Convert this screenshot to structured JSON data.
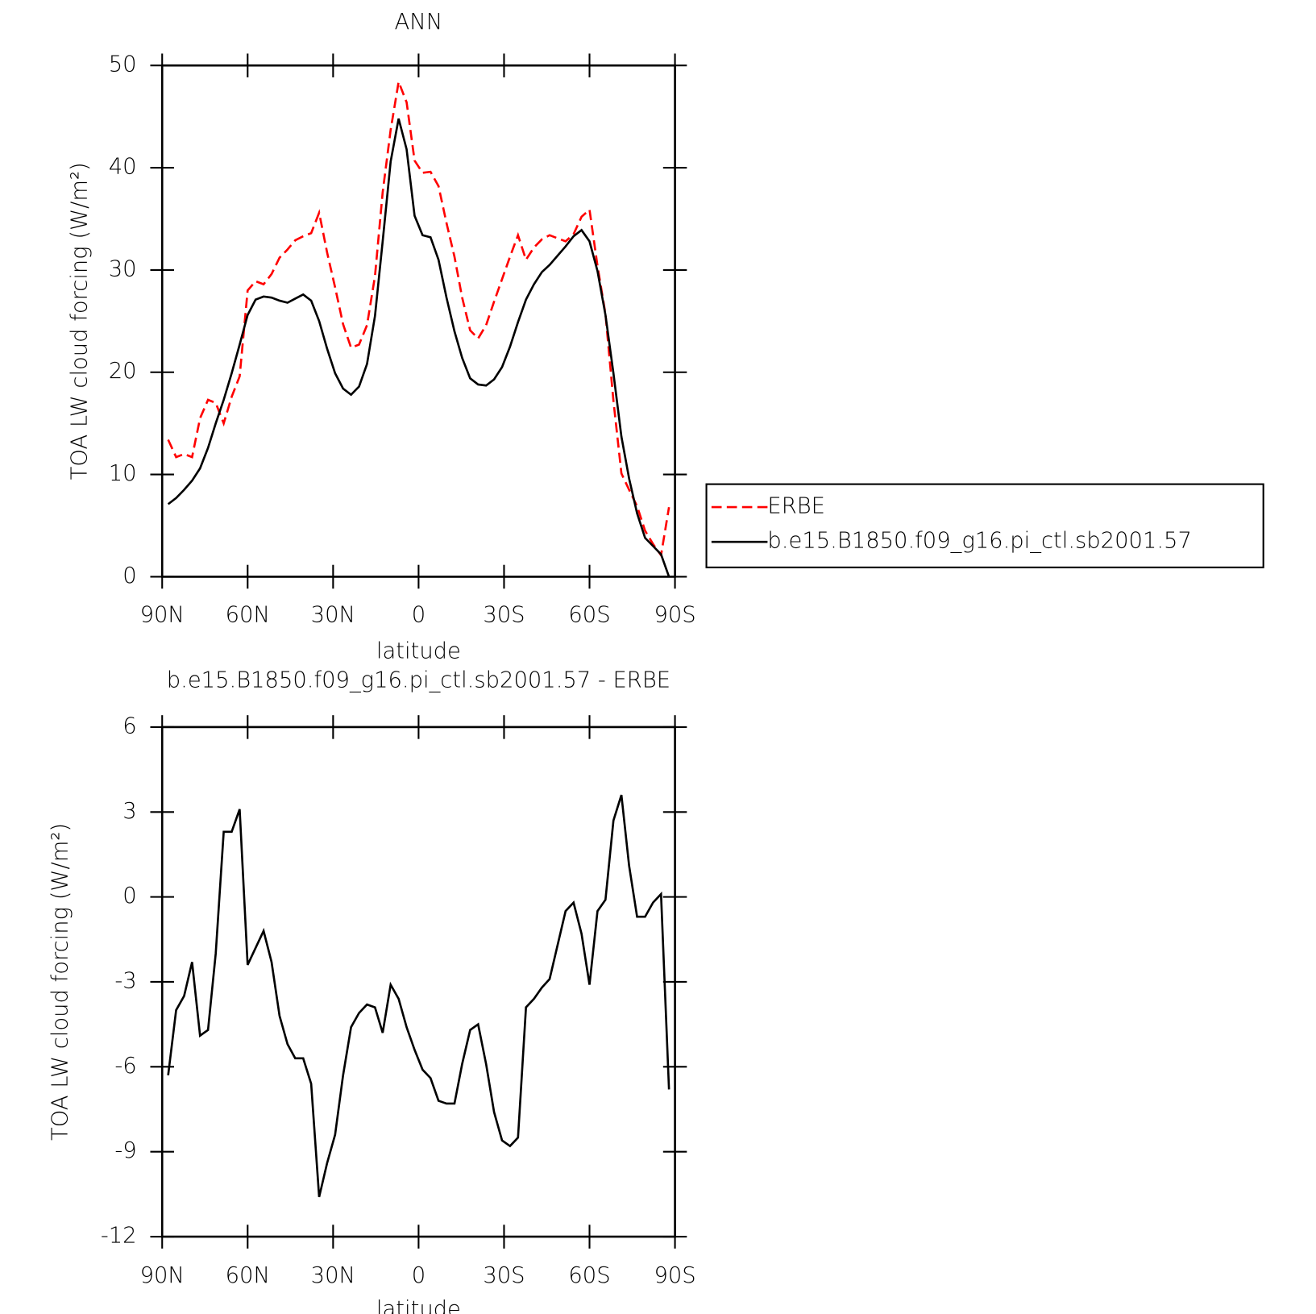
{
  "chart_data": [
    {
      "type": "line",
      "title": "ANN",
      "xlabel": "latitude",
      "ylabel": "TOA LW cloud forcing (W/m²)",
      "x": [
        87.9,
        85.1,
        82.3,
        79.5,
        76.7,
        73.9,
        71.2,
        68.4,
        65.6,
        62.8,
        60.0,
        57.2,
        54.4,
        51.6,
        48.8,
        46.0,
        43.3,
        40.5,
        37.7,
        34.9,
        32.1,
        29.3,
        26.5,
        23.7,
        20.9,
        18.1,
        15.3,
        12.6,
        9.8,
        7.0,
        4.2,
        1.4,
        -1.4,
        -4.2,
        -7.0,
        -9.8,
        -12.6,
        -15.3,
        -18.1,
        -20.9,
        -23.7,
        -26.5,
        -29.3,
        -32.1,
        -34.9,
        -37.7,
        -40.5,
        -43.3,
        -46.0,
        -48.8,
        -51.6,
        -54.4,
        -57.2,
        -60.0,
        -62.8,
        -65.6,
        -68.4,
        -71.2,
        -73.9,
        -76.7,
        -79.5,
        -82.3,
        -85.1,
        -87.9
      ],
      "series": [
        {
          "name": "ERBE",
          "color": "#ff0000",
          "dashed": true,
          "values": [
            13.4,
            11.7,
            12.0,
            11.7,
            15.5,
            17.3,
            17.0,
            15.0,
            17.6,
            19.6,
            28.0,
            28.9,
            28.6,
            29.6,
            31.2,
            32.0,
            32.9,
            33.3,
            33.6,
            35.6,
            31.7,
            28.3,
            24.7,
            22.4,
            22.7,
            24.6,
            29.4,
            37.6,
            43.7,
            48.4,
            46.4,
            40.7,
            39.5,
            39.6,
            38.2,
            34.6,
            31.3,
            27.3,
            24.1,
            23.3,
            24.6,
            26.9,
            29.1,
            31.3,
            33.4,
            31.0,
            32.2,
            33.0,
            33.4,
            33.1,
            32.8,
            33.5,
            35.2,
            35.9,
            30.4,
            25.7,
            17.2,
            10.1,
            8.5,
            6.9,
            4.5,
            3.2,
            2.1,
            6.8
          ]
        },
        {
          "name": "b.e15.B1850.f09_g16.pi_ctl.sb2001.57",
          "color": "#000000",
          "dashed": false,
          "values": [
            7.1,
            7.7,
            8.5,
            9.4,
            10.6,
            12.6,
            15.0,
            17.3,
            19.9,
            22.7,
            25.6,
            27.1,
            27.4,
            27.3,
            27.0,
            26.8,
            27.2,
            27.6,
            27.0,
            25.0,
            22.3,
            19.9,
            18.4,
            17.8,
            18.6,
            20.8,
            25.5,
            32.8,
            40.6,
            44.8,
            41.8,
            35.3,
            33.4,
            33.2,
            31.0,
            27.3,
            24.0,
            21.4,
            19.4,
            18.8,
            18.7,
            19.3,
            20.5,
            22.5,
            24.9,
            27.1,
            28.6,
            29.8,
            30.5,
            31.4,
            32.3,
            33.3,
            33.9,
            32.8,
            29.9,
            25.6,
            19.9,
            13.7,
            9.6,
            6.2,
            3.8,
            3.0,
            2.2,
            0.0
          ]
        }
      ],
      "xlim": [
        90,
        -90
      ],
      "xticks": [
        {
          "value": 90,
          "label": "90N"
        },
        {
          "value": 60,
          "label": "60N"
        },
        {
          "value": 30,
          "label": "30N"
        },
        0,
        {
          "value": -30,
          "label": "30S"
        },
        {
          "value": -60,
          "label": "60S"
        },
        {
          "value": -90,
          "label": "90S"
        }
      ],
      "ylim": [
        0,
        50
      ],
      "yticks": [
        0,
        10,
        20,
        30,
        40,
        50
      ],
      "legend": "right"
    },
    {
      "type": "line",
      "title": "b.e15.B1850.f09_g16.pi_ctl.sb2001.57 - ERBE",
      "xlabel": "latitude",
      "ylabel": "TOA LW cloud forcing (W/m²)",
      "x": [
        87.9,
        85.1,
        82.3,
        79.5,
        76.7,
        73.9,
        71.2,
        68.4,
        65.6,
        62.8,
        60.0,
        57.2,
        54.4,
        51.6,
        48.8,
        46.0,
        43.3,
        40.5,
        37.7,
        34.9,
        32.1,
        29.3,
        26.5,
        23.7,
        20.9,
        18.1,
        15.3,
        12.6,
        9.8,
        7.0,
        4.2,
        1.4,
        -1.4,
        -4.2,
        -7.0,
        -9.8,
        -12.6,
        -15.3,
        -18.1,
        -20.9,
        -23.7,
        -26.5,
        -29.3,
        -32.1,
        -34.9,
        -37.7,
        -40.5,
        -43.3,
        -46.0,
        -48.8,
        -51.6,
        -54.4,
        -57.2,
        -60.0,
        -62.8,
        -65.6,
        -68.4,
        -71.2,
        -73.9,
        -76.7,
        -79.5,
        -82.3,
        -85.1,
        -87.9
      ],
      "color": "#000000",
      "values": [
        -6.3,
        -4.0,
        -3.5,
        -2.3,
        -4.9,
        -4.7,
        -2.0,
        2.3,
        2.3,
        3.1,
        -2.4,
        -1.8,
        -1.2,
        -2.3,
        -4.2,
        -5.2,
        -5.7,
        -5.7,
        -6.6,
        -10.6,
        -9.4,
        -8.4,
        -6.3,
        -4.6,
        -4.1,
        -3.8,
        -3.9,
        -4.8,
        -3.1,
        -3.6,
        -4.6,
        -5.4,
        -6.1,
        -6.4,
        -7.2,
        -7.3,
        -7.3,
        -5.9,
        -4.7,
        -4.5,
        -5.9,
        -7.6,
        -8.6,
        -8.8,
        -8.5,
        -3.9,
        -3.6,
        -3.2,
        -2.9,
        -1.7,
        -0.5,
        -0.2,
        -1.3,
        -3.1,
        -0.5,
        -0.1,
        2.7,
        3.6,
        1.1,
        -0.7,
        -0.7,
        -0.2,
        0.1,
        -6.8
      ],
      "xlim": [
        90,
        -90
      ],
      "xticks": [
        {
          "value": 90,
          "label": "90N"
        },
        {
          "value": 60,
          "label": "60N"
        },
        {
          "value": 30,
          "label": "30N"
        },
        0,
        {
          "value": -30,
          "label": "30S"
        },
        {
          "value": -60,
          "label": "60S"
        },
        {
          "value": -90,
          "label": "90S"
        }
      ],
      "ylim": [
        -12,
        6
      ],
      "yticks": [
        -12,
        -9,
        -6,
        -3,
        0,
        3,
        6
      ]
    }
  ]
}
